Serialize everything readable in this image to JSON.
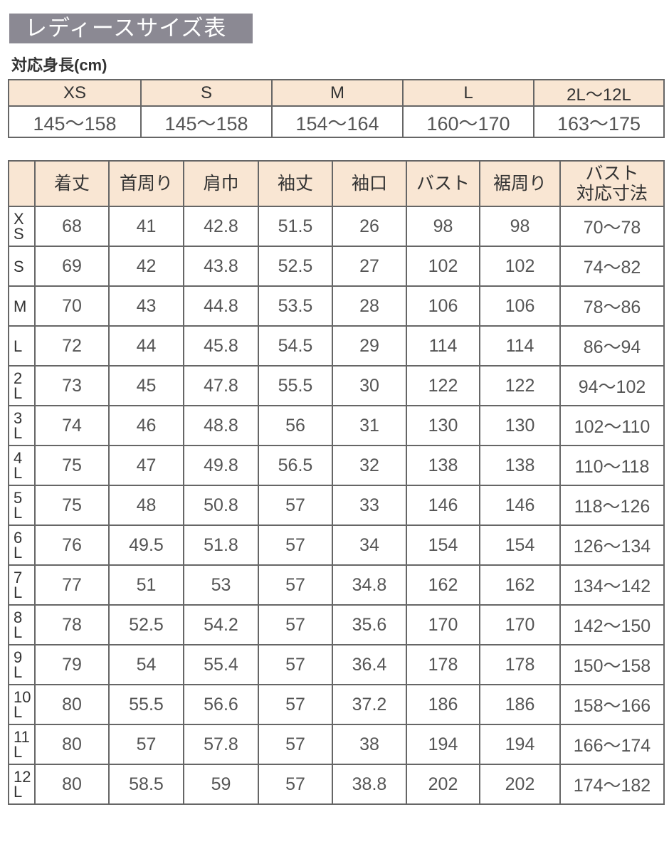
{
  "title": "レディースサイズ表",
  "height_table": {
    "label": "対応身長(cm)",
    "sizes": [
      "XS",
      "S",
      "M",
      "L",
      "2L〜12L"
    ],
    "heights": [
      "145〜158",
      "145〜158",
      "154〜164",
      "160〜170",
      "163〜175"
    ]
  },
  "size_table": {
    "headers": [
      "",
      "着丈",
      "首周り",
      "肩巾",
      "袖丈",
      "袖口",
      "バスト",
      "裾周り",
      "バスト\n対応寸法"
    ],
    "rows": [
      {
        "size": "X\nS",
        "values": [
          "68",
          "41",
          "42.8",
          "51.5",
          "26",
          "98",
          "98",
          "70〜78"
        ]
      },
      {
        "size": "S",
        "values": [
          "69",
          "42",
          "43.8",
          "52.5",
          "27",
          "102",
          "102",
          "74〜82"
        ]
      },
      {
        "size": "M",
        "values": [
          "70",
          "43",
          "44.8",
          "53.5",
          "28",
          "106",
          "106",
          "78〜86"
        ]
      },
      {
        "size": "L",
        "values": [
          "72",
          "44",
          "45.8",
          "54.5",
          "29",
          "114",
          "114",
          "86〜94"
        ]
      },
      {
        "size": "2\nL",
        "values": [
          "73",
          "45",
          "47.8",
          "55.5",
          "30",
          "122",
          "122",
          "94〜102"
        ]
      },
      {
        "size": "3\nL",
        "values": [
          "74",
          "46",
          "48.8",
          "56",
          "31",
          "130",
          "130",
          "102〜110"
        ]
      },
      {
        "size": "4\nL",
        "values": [
          "75",
          "47",
          "49.8",
          "56.5",
          "32",
          "138",
          "138",
          "110〜118"
        ]
      },
      {
        "size": "5\nL",
        "values": [
          "75",
          "48",
          "50.8",
          "57",
          "33",
          "146",
          "146",
          "118〜126"
        ]
      },
      {
        "size": "6\nL",
        "values": [
          "76",
          "49.5",
          "51.8",
          "57",
          "34",
          "154",
          "154",
          "126〜134"
        ]
      },
      {
        "size": "7\nL",
        "values": [
          "77",
          "51",
          "53",
          "57",
          "34.8",
          "162",
          "162",
          "134〜142"
        ]
      },
      {
        "size": "8\nL",
        "values": [
          "78",
          "52.5",
          "54.2",
          "57",
          "35.6",
          "170",
          "170",
          "142〜150"
        ]
      },
      {
        "size": "9\nL",
        "values": [
          "79",
          "54",
          "55.4",
          "57",
          "36.4",
          "178",
          "178",
          "150〜158"
        ]
      },
      {
        "size": "10\nL",
        "values": [
          "80",
          "55.5",
          "56.6",
          "57",
          "37.2",
          "186",
          "186",
          "158〜166"
        ]
      },
      {
        "size": "11\nL",
        "values": [
          "80",
          "57",
          "57.8",
          "57",
          "38",
          "194",
          "194",
          "166〜174"
        ]
      },
      {
        "size": "12\nL",
        "values": [
          "80",
          "58.5",
          "59",
          "57",
          "38.8",
          "202",
          "202",
          "174〜182"
        ]
      }
    ]
  },
  "colors": {
    "title_bg": "#8b8993",
    "header_bg": "#f9e6d3",
    "border": "#666666"
  }
}
